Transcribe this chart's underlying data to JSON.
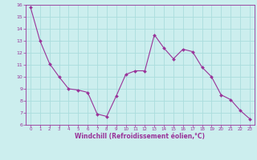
{
  "x": [
    0,
    1,
    2,
    3,
    4,
    5,
    6,
    7,
    8,
    9,
    10,
    11,
    12,
    13,
    14,
    15,
    16,
    17,
    18,
    19,
    20,
    21,
    22,
    23
  ],
  "y": [
    15.8,
    13.0,
    11.1,
    10.0,
    9.0,
    8.9,
    8.7,
    6.9,
    6.7,
    8.4,
    10.2,
    10.5,
    10.5,
    13.5,
    12.4,
    11.5,
    12.3,
    12.1,
    10.8,
    10.0,
    8.5,
    8.1,
    7.2,
    6.5
  ],
  "line_color": "#993399",
  "marker_color": "#993399",
  "bg_color": "#cceeee",
  "grid_color": "#aadddd",
  "xlabel": "Windchill (Refroidissement éolien,°C)",
  "xlabel_color": "#993399",
  "tick_color": "#993399",
  "ylim": [
    6,
    16
  ],
  "xlim": [
    -0.5,
    23.5
  ],
  "yticks": [
    6,
    7,
    8,
    9,
    10,
    11,
    12,
    13,
    14,
    15,
    16
  ],
  "xticks": [
    0,
    1,
    2,
    3,
    4,
    5,
    6,
    7,
    8,
    9,
    10,
    11,
    12,
    13,
    14,
    15,
    16,
    17,
    18,
    19,
    20,
    21,
    22,
    23
  ]
}
